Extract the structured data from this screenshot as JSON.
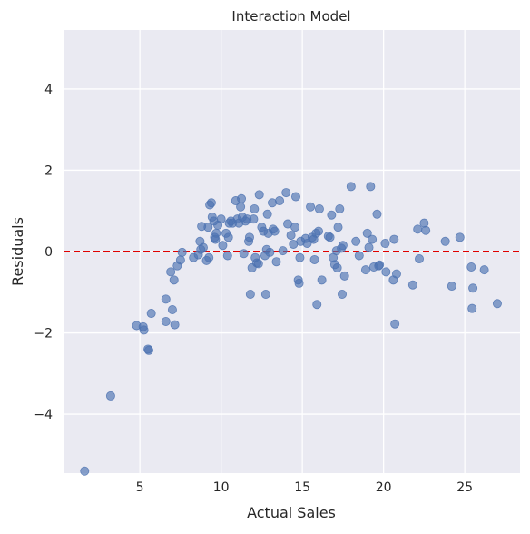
{
  "chart_data": {
    "type": "scatter",
    "title": "Interaction Model",
    "xlabel": "Actual Sales",
    "ylabel": "Residuals",
    "xlim": [
      0.3,
      28.4
    ],
    "ylim": [
      -5.45,
      5.45
    ],
    "xticks": [
      5,
      10,
      15,
      20,
      25
    ],
    "yticks": [
      -4,
      -2,
      0,
      2,
      4
    ],
    "xtick_labels": [
      "5",
      "10",
      "15",
      "20",
      "25"
    ],
    "ytick_labels": [
      "−4",
      "−2",
      "0",
      "2",
      "4"
    ],
    "grid": true,
    "reference_line": {
      "y": 0,
      "style": "dashed",
      "color": "#e00000"
    },
    "colors": {
      "points": "#4c72b0",
      "background": "#eaeaf2",
      "grid": "#ffffff"
    },
    "series": [
      {
        "points": [
          [
            1.6,
            -5.4
          ],
          [
            3.2,
            -3.55
          ],
          [
            4.8,
            -1.82
          ],
          [
            5.2,
            -1.85
          ],
          [
            5.25,
            -1.93
          ],
          [
            5.5,
            -2.4
          ],
          [
            5.55,
            -2.43
          ],
          [
            5.7,
            -1.52
          ],
          [
            6.6,
            -1.17
          ],
          [
            6.6,
            -1.72
          ],
          [
            6.9,
            -0.5
          ],
          [
            7.0,
            -1.43
          ],
          [
            7.1,
            -0.7
          ],
          [
            7.15,
            -1.8
          ],
          [
            7.3,
            -0.35
          ],
          [
            7.5,
            -0.21
          ],
          [
            7.6,
            -0.02
          ],
          [
            8.3,
            -0.15
          ],
          [
            8.6,
            -0.08
          ],
          [
            8.7,
            0.25
          ],
          [
            8.75,
            0.05
          ],
          [
            8.8,
            0.62
          ],
          [
            8.9,
            0.1
          ],
          [
            9.1,
            -0.22
          ],
          [
            9.2,
            0.6
          ],
          [
            9.25,
            -0.15
          ],
          [
            9.3,
            1.15
          ],
          [
            9.4,
            1.2
          ],
          [
            9.45,
            0.85
          ],
          [
            9.55,
            0.75
          ],
          [
            9.6,
            0.35
          ],
          [
            9.65,
            0.3
          ],
          [
            9.7,
            0.45
          ],
          [
            9.8,
            0.65
          ],
          [
            10.0,
            0.8
          ],
          [
            10.1,
            0.15
          ],
          [
            10.3,
            0.45
          ],
          [
            10.4,
            -0.1
          ],
          [
            10.45,
            0.35
          ],
          [
            10.5,
            0.7
          ],
          [
            10.6,
            0.75
          ],
          [
            10.7,
            0.7
          ],
          [
            10.9,
            1.25
          ],
          [
            11.0,
            0.8
          ],
          [
            11.1,
            0.7
          ],
          [
            11.2,
            1.1
          ],
          [
            11.25,
            1.3
          ],
          [
            11.3,
            0.85
          ],
          [
            11.4,
            -0.05
          ],
          [
            11.5,
            0.75
          ],
          [
            11.6,
            0.8
          ],
          [
            11.7,
            0.25
          ],
          [
            11.75,
            0.35
          ],
          [
            11.8,
            -1.05
          ],
          [
            11.9,
            -0.4
          ],
          [
            12.0,
            0.8
          ],
          [
            12.05,
            1.05
          ],
          [
            12.1,
            -0.15
          ],
          [
            12.2,
            -0.28
          ],
          [
            12.3,
            -0.3
          ],
          [
            12.35,
            1.4
          ],
          [
            12.5,
            0.6
          ],
          [
            12.6,
            0.5
          ],
          [
            12.7,
            -0.1
          ],
          [
            12.75,
            -1.05
          ],
          [
            12.8,
            0.05
          ],
          [
            12.85,
            0.92
          ],
          [
            12.9,
            0.45
          ],
          [
            13.0,
            -0.02
          ],
          [
            13.15,
            1.2
          ],
          [
            13.2,
            0.55
          ],
          [
            13.3,
            0.5
          ],
          [
            13.4,
            -0.25
          ],
          [
            13.6,
            1.25
          ],
          [
            13.8,
            0.02
          ],
          [
            14.0,
            1.45
          ],
          [
            14.1,
            0.68
          ],
          [
            14.3,
            0.4
          ],
          [
            14.45,
            0.18
          ],
          [
            14.55,
            0.6
          ],
          [
            14.6,
            1.35
          ],
          [
            14.75,
            -0.7
          ],
          [
            14.8,
            -0.78
          ],
          [
            14.85,
            -0.15
          ],
          [
            14.9,
            0.25
          ],
          [
            15.2,
            0.32
          ],
          [
            15.3,
            0.2
          ],
          [
            15.5,
            1.1
          ],
          [
            15.6,
            0.35
          ],
          [
            15.7,
            0.3
          ],
          [
            15.75,
            -0.2
          ],
          [
            15.85,
            0.45
          ],
          [
            15.9,
            -1.3
          ],
          [
            16.0,
            0.5
          ],
          [
            16.05,
            1.05
          ],
          [
            16.2,
            -0.7
          ],
          [
            16.6,
            0.38
          ],
          [
            16.7,
            0.35
          ],
          [
            16.8,
            0.9
          ],
          [
            16.9,
            -0.15
          ],
          [
            17.0,
            -0.32
          ],
          [
            17.1,
            0.02
          ],
          [
            17.15,
            -0.4
          ],
          [
            17.2,
            0.6
          ],
          [
            17.3,
            1.05
          ],
          [
            17.4,
            0.08
          ],
          [
            17.45,
            -1.05
          ],
          [
            17.5,
            0.15
          ],
          [
            17.6,
            -0.6
          ],
          [
            18.0,
            1.6
          ],
          [
            18.3,
            0.25
          ],
          [
            18.5,
            -0.1
          ],
          [
            18.9,
            -0.45
          ],
          [
            19.0,
            0.45
          ],
          [
            19.1,
            0.1
          ],
          [
            19.2,
            1.6
          ],
          [
            19.3,
            0.3
          ],
          [
            19.4,
            -0.38
          ],
          [
            19.6,
            0.92
          ],
          [
            19.7,
            -0.35
          ],
          [
            19.75,
            -0.33
          ],
          [
            20.1,
            0.2
          ],
          [
            20.15,
            -0.5
          ],
          [
            20.6,
            -0.7
          ],
          [
            20.65,
            0.3
          ],
          [
            20.7,
            -1.78
          ],
          [
            20.8,
            -0.55
          ],
          [
            21.8,
            -0.82
          ],
          [
            22.1,
            0.55
          ],
          [
            22.2,
            -0.18
          ],
          [
            22.5,
            0.7
          ],
          [
            22.6,
            0.52
          ],
          [
            23.8,
            0.25
          ],
          [
            24.2,
            -0.85
          ],
          [
            24.7,
            0.35
          ],
          [
            25.4,
            -0.38
          ],
          [
            25.45,
            -1.4
          ],
          [
            25.5,
            -0.9
          ],
          [
            26.2,
            -0.45
          ],
          [
            27.0,
            -1.28
          ]
        ]
      }
    ]
  }
}
